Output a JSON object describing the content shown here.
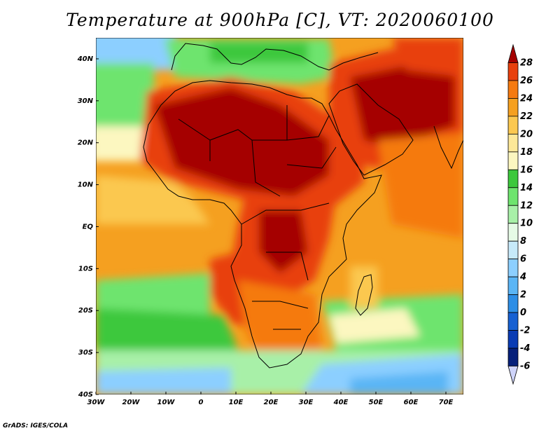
{
  "title": "Temperature at 900hPa [C], VT: 2020060100",
  "footer": "GrADS: IGES/COLA",
  "lat_labels": [
    "40N",
    "30N",
    "20N",
    "10N",
    "EQ",
    "10S",
    "20S",
    "30S",
    "40S"
  ],
  "lon_labels": [
    "30W",
    "20W",
    "10W",
    "0",
    "10E",
    "20E",
    "30E",
    "40E",
    "50E",
    "60E",
    "70E"
  ],
  "colorbar": {
    "labels": [
      "28",
      "26",
      "24",
      "22",
      "20",
      "18",
      "16",
      "14",
      "12",
      "10",
      "8",
      "6",
      "4",
      "2",
      "0",
      "-2",
      "-4",
      "-6"
    ],
    "colors": [
      "#a50000",
      "#e8400e",
      "#f57a10",
      "#f5a020",
      "#fbc850",
      "#fde898",
      "#fcf7c0",
      "#3cc83c",
      "#6ee46e",
      "#a8f0a8",
      "#e6fae6",
      "#c7eafa",
      "#8ccfff",
      "#5ab5f5",
      "#2d8ee6",
      "#1660d2",
      "#0a3cb4",
      "#06207a",
      "#cfd4fa"
    ]
  },
  "map": {
    "lon_range": [
      -30,
      75
    ],
    "lat_range": [
      -40,
      45
    ]
  }
}
